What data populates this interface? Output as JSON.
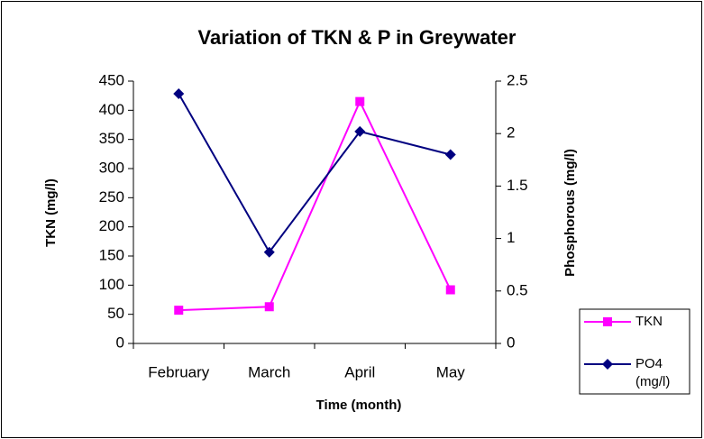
{
  "chart_data": {
    "type": "line",
    "title": "Variation of TKN & P in Greywater",
    "xlabel": "Time (month)",
    "ylabel": "TKN (mg/l)",
    "y2label": "Phosphorous (mg/l)",
    "categories": [
      "February",
      "March",
      "April",
      "May"
    ],
    "ylim": [
      0,
      450
    ],
    "yticks": [
      0,
      50,
      100,
      150,
      200,
      250,
      300,
      350,
      400,
      450
    ],
    "y2lim": [
      0,
      2.5
    ],
    "y2ticks": [
      0,
      0.5,
      1,
      1.5,
      2,
      2.5
    ],
    "legend": "right",
    "series": [
      {
        "name": "TKN",
        "color": "#ff00ff",
        "marker": "square",
        "values": [
          57,
          63,
          415,
          92
        ]
      },
      {
        "name": "PO4 (mg/l)",
        "color": "#000080",
        "marker": "diamond",
        "axis": "y2",
        "values": [
          2.38,
          0.87,
          2.02,
          1.8
        ]
      }
    ]
  }
}
